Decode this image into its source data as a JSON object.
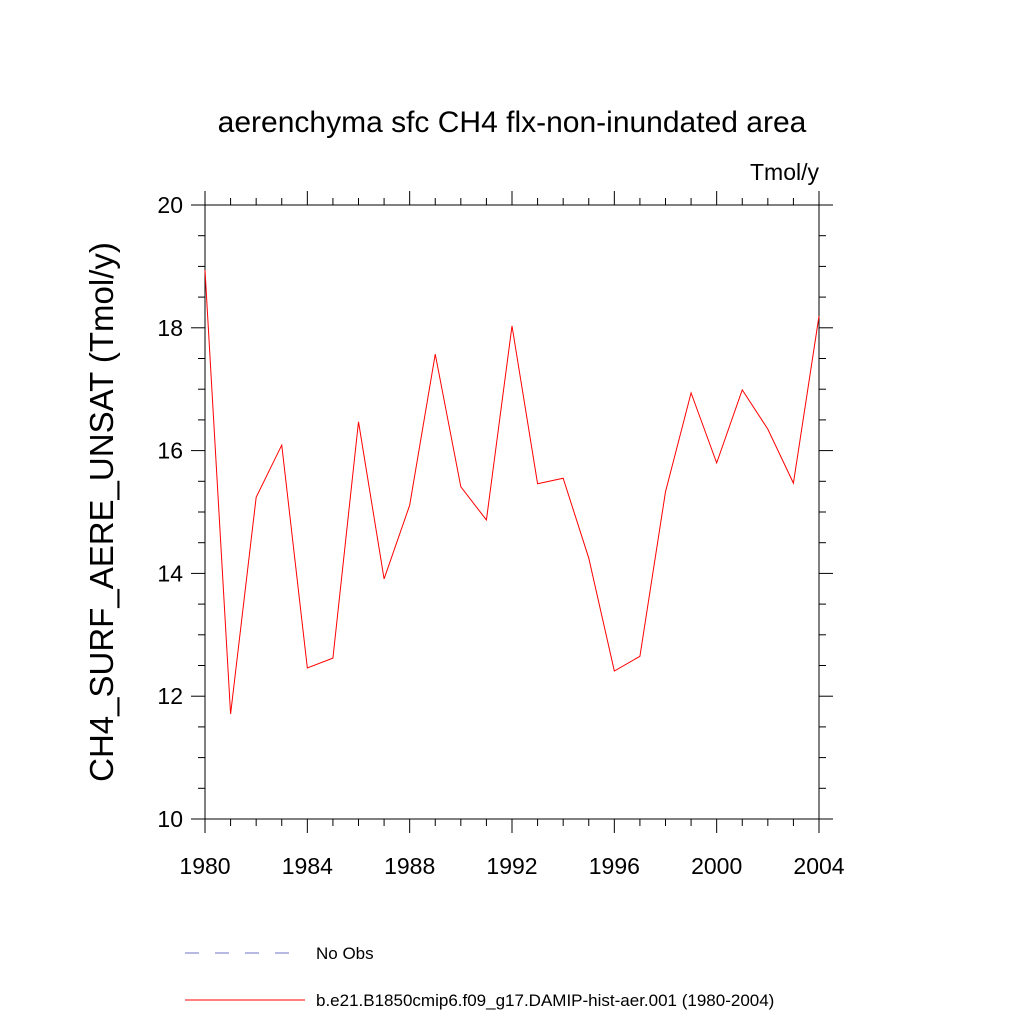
{
  "chart_data": {
    "type": "line",
    "title": "aerenchyma sfc CH4 flx-non-inundated area",
    "units": "Tmol/y",
    "y_label": "CH4_SURF_AERE_UNSAT  (Tmol/y)",
    "x": [
      1980,
      1981,
      1982,
      1983,
      1984,
      1985,
      1986,
      1987,
      1988,
      1989,
      1990,
      1991,
      1992,
      1993,
      1994,
      1995,
      1996,
      1997,
      1998,
      1999,
      2000,
      2001,
      2002,
      2003,
      2004
    ],
    "series": [
      {
        "name": "No Obs",
        "color": "#7070c8",
        "dash": true,
        "values": [
          null,
          null,
          null,
          null,
          null,
          null,
          null,
          null,
          null,
          null,
          null,
          null,
          null,
          null,
          null,
          null,
          null,
          null,
          null,
          null,
          null,
          null,
          null,
          null,
          null
        ]
      },
      {
        "name": "b.e21.B1850cmip6.f09_g17.DAMIP-hist-aer.001 (1980-2004)",
        "color": "#ff0000",
        "dash": false,
        "values": [
          18.94,
          11.71,
          15.24,
          16.09,
          12.46,
          12.62,
          16.47,
          13.91,
          15.11,
          17.57,
          15.41,
          14.87,
          18.03,
          15.46,
          15.55,
          14.25,
          12.41,
          12.65,
          15.33,
          16.94,
          15.8,
          16.99,
          16.35,
          15.47,
          18.19
        ]
      }
    ],
    "xlim": [
      1980,
      2004
    ],
    "xticks": [
      1980,
      1984,
      1988,
      1992,
      1996,
      2000,
      2004
    ],
    "ylim": [
      10,
      20
    ],
    "yticks": [
      10,
      12,
      14,
      16,
      18,
      20
    ]
  }
}
